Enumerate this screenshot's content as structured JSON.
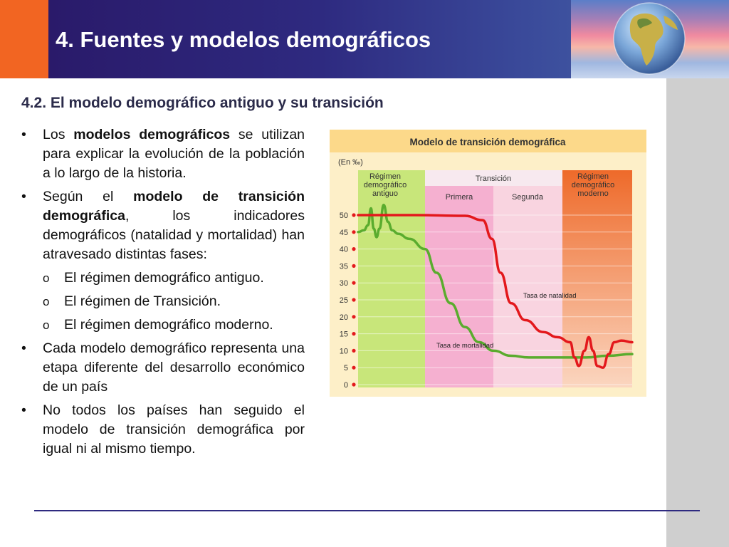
{
  "header": {
    "title": "4. Fuentes y modelos demográficos"
  },
  "subtitle": "4.2. El modelo demográfico antiguo y su transición",
  "bullets": {
    "b1": {
      "pre": "Los ",
      "bold": "modelos demográficos",
      "post": " se utilizan para explicar la evolución de la población a lo largo de la historia."
    },
    "b2": {
      "pre": "Según el ",
      "bold": "modelo de transición demográfica",
      "post": ", los indicadores demográficos (natalidad y mortalidad) han atravesado distintas fases:"
    },
    "subs": [
      "El régimen demográfico antiguo.",
      "El régimen de Transición.",
      "El régimen demográfico moderno."
    ],
    "b3": "Cada modelo demográfico representa una etapa diferente del desarrollo económico de un país",
    "b4": "No todos los países han seguido el modelo de transición demográfica por igual ni al mismo tiempo.",
    "bullet_mark": "•",
    "sub_mark": "o"
  },
  "chart_data": {
    "type": "line",
    "title": "Modelo de transición demográfica",
    "unit_label": "(En ‰)",
    "ylim": [
      0,
      50
    ],
    "y_ticks": [
      "50",
      "45",
      "40",
      "35",
      "30",
      "25",
      "20",
      "15",
      "10",
      "5",
      "0"
    ],
    "phases": {
      "antiguo": "Régimen demográfico antiguo",
      "transicion": "Transición",
      "primera": "Primera",
      "segunda": "Segunda",
      "moderno": "Régimen demográfico moderno"
    },
    "series": [
      {
        "name": "Tasa de natalidad",
        "color": "#e3181c"
      },
      {
        "name": "Tasa de mortalidad",
        "color": "#5aac2e"
      }
    ],
    "colors": {
      "antiguo": "#c8e67a",
      "primera": "#f5b0d0",
      "segunda": "#f9d4e0",
      "moderno": "#f07c3e",
      "panel": "#fdefc8",
      "title_bar": "#fcd98a"
    }
  }
}
